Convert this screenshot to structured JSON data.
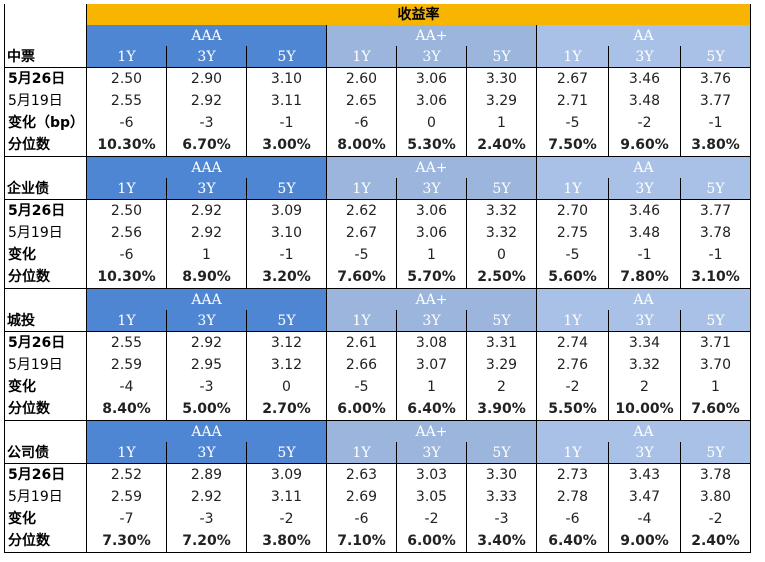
{
  "title": "收益率",
  "groups": [
    "AAA",
    "AA+",
    "AA"
  ],
  "years": [
    "1Y",
    "3Y",
    "5Y"
  ],
  "colors": {
    "title": "#f7b500",
    "aaa": "#4f86d4",
    "aa_plus": "#9bb5dc",
    "aa": "#a9c1e6"
  },
  "sections": [
    {
      "name": "中票",
      "rows": [
        {
          "label": "5月26日",
          "values": [
            "2.50",
            "2.90",
            "3.10",
            "2.60",
            "3.06",
            "3.30",
            "2.67",
            "3.46",
            "3.76"
          ]
        },
        {
          "label": "5月19日",
          "values": [
            "2.55",
            "2.92",
            "3.11",
            "2.65",
            "3.06",
            "3.29",
            "2.71",
            "3.48",
            "3.77"
          ]
        },
        {
          "label": "变化（bp）",
          "values": [
            "-6",
            "-3",
            "-1",
            "-6",
            "0",
            "1",
            "-5",
            "-2",
            "-1"
          ]
        },
        {
          "label": "分位数",
          "values": [
            "10.30%",
            "6.70%",
            "3.00%",
            "8.00%",
            "5.30%",
            "2.40%",
            "7.50%",
            "9.60%",
            "3.80%"
          ]
        }
      ]
    },
    {
      "name": "企业债",
      "rows": [
        {
          "label": "5月26日",
          "values": [
            "2.50",
            "2.92",
            "3.09",
            "2.62",
            "3.06",
            "3.32",
            "2.70",
            "3.46",
            "3.77"
          ]
        },
        {
          "label": "5月19日",
          "values": [
            "2.56",
            "2.92",
            "3.10",
            "2.67",
            "3.06",
            "3.32",
            "2.75",
            "3.48",
            "3.78"
          ]
        },
        {
          "label": "变化",
          "values": [
            "-6",
            "1",
            "-1",
            "-5",
            "1",
            "0",
            "-5",
            "-1",
            "-1"
          ]
        },
        {
          "label": "分位数",
          "values": [
            "10.30%",
            "8.90%",
            "3.20%",
            "7.60%",
            "5.70%",
            "2.50%",
            "5.60%",
            "7.80%",
            "3.10%"
          ]
        }
      ]
    },
    {
      "name": "城投",
      "rows": [
        {
          "label": "5月26日",
          "values": [
            "2.55",
            "2.92",
            "3.12",
            "2.61",
            "3.08",
            "3.31",
            "2.74",
            "3.34",
            "3.71"
          ]
        },
        {
          "label": "5月19日",
          "values": [
            "2.59",
            "2.95",
            "3.12",
            "2.66",
            "3.07",
            "3.29",
            "2.76",
            "3.32",
            "3.70"
          ]
        },
        {
          "label": "变化",
          "values": [
            "-4",
            "-3",
            "0",
            "-5",
            "1",
            "2",
            "-2",
            "2",
            "1"
          ]
        },
        {
          "label": "分位数",
          "values": [
            "8.40%",
            "5.00%",
            "2.70%",
            "6.00%",
            "6.40%",
            "3.90%",
            "5.50%",
            "10.00%",
            "7.60%"
          ]
        }
      ]
    },
    {
      "name": "公司债",
      "rows": [
        {
          "label": "5月26日",
          "values": [
            "2.52",
            "2.89",
            "3.09",
            "2.63",
            "3.03",
            "3.30",
            "2.73",
            "3.43",
            "3.78"
          ]
        },
        {
          "label": "5月19日",
          "values": [
            "2.59",
            "2.92",
            "3.11",
            "2.69",
            "3.05",
            "3.33",
            "2.78",
            "3.47",
            "3.80"
          ]
        },
        {
          "label": "变化",
          "values": [
            "-7",
            "-3",
            "-2",
            "-6",
            "-2",
            "-3",
            "-6",
            "-4",
            "-2"
          ]
        },
        {
          "label": "分位数",
          "values": [
            "7.30%",
            "7.20%",
            "3.80%",
            "7.10%",
            "6.00%",
            "3.40%",
            "6.40%",
            "9.00%",
            "2.40%"
          ]
        }
      ]
    }
  ]
}
